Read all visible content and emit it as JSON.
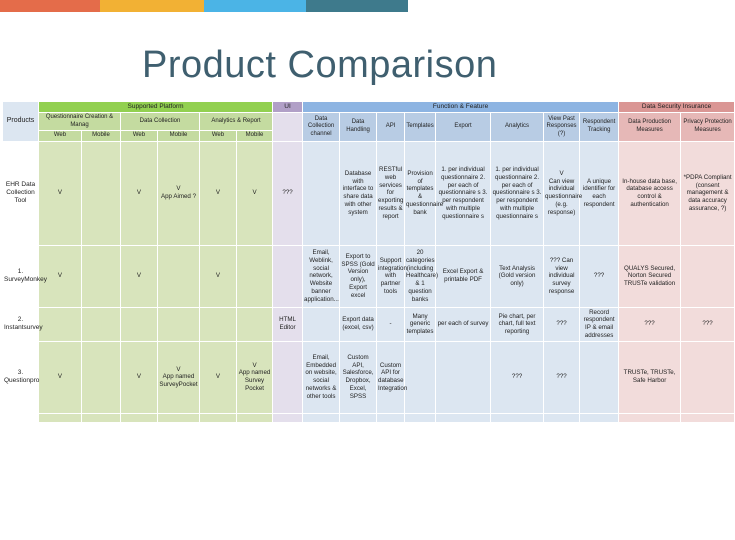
{
  "colors": {
    "bar1": "#e46c4a",
    "bar2": "#f2b134",
    "bar3": "#4bb4e6",
    "bar4": "#3e7a8c",
    "title": "#3f5f6f"
  },
  "title": "Product Comparison",
  "table": {
    "groups": {
      "products": "Products",
      "supported_platform": "Supported Platform",
      "ui": "UI",
      "function_feature": "Function & Feature",
      "data_security": "Data Security Insurance"
    },
    "platform_subgroups": {
      "questionnaire": "Questionnaire Creation & Manag",
      "data_collection": "Data Collection",
      "analytics": "Analytics & Report"
    },
    "platform_cols": [
      "Web",
      "Mobile",
      "Web",
      "Mobile",
      "Web",
      "Mobile"
    ],
    "feature_cols": [
      "Data Collection channel",
      "Data Handling",
      "API",
      "Templates",
      "Export",
      "Analytics",
      "View Past Responses (?)",
      "Respondent Tracking"
    ],
    "security_cols": [
      "Data Production Measures",
      "Privacy Protection Measures"
    ],
    "rows": [
      {
        "product": "EHR Data Collection Tool",
        "platform": [
          "V",
          "",
          "V",
          "V\nApp Aimed ?",
          "V",
          "V"
        ],
        "ui": "???",
        "features": [
          "",
          "Database with interface to share data with other system",
          "RESTful web services for exporting results & report",
          "Provision of templates & questionnaire bank",
          "1. per individual questionnaire 2. per each of questionnaire s 3. per respondent with multiple questionnaire s",
          "1. per individual questionnaire 2. per each of questionnaire s 3. per respondent with multiple questionnaire s",
          "V\nCan view individual questionnaire\n(e.g. response)",
          "A unique identifier for each respondent"
        ],
        "security": [
          "In-house data base, database access control & authentication",
          "*PDPA Compliant (consent management & data accuracy assurance, ?)"
        ]
      },
      {
        "product": "1. SurveyMonkey",
        "platform": [
          "V",
          "",
          "V",
          "",
          "V",
          ""
        ],
        "ui": "",
        "features": [
          "Email, Weblink, social network, Website banner application...",
          "Export to SPSS (Gold Version only), Export excel",
          "Support integration with partner tools",
          "20 categories (including Healthcare) & 1 question banks",
          "Excel Export & printable PDF",
          "Text Analysis (Gold version only)",
          "??? Can view individual survey response",
          "???"
        ],
        "security": [
          "QUALYS Secured, Norton Secured TRUSTe validation",
          ""
        ]
      },
      {
        "product": "2. Instantsurvey",
        "platform": [
          "",
          "",
          "",
          "",
          "",
          ""
        ],
        "ui": "HTML Editor",
        "features": [
          "",
          "Export data (excel, csv)",
          "-",
          "Many generic templates",
          "per each of survey",
          "Pie chart, per chart, full text reporting",
          "???",
          "Record respondent IP & email addresses"
        ],
        "security": [
          "???",
          "???"
        ]
      },
      {
        "product": "3. Questionpro",
        "platform": [
          "V",
          "",
          "V",
          "V\nApp named SurveyPocket",
          "V",
          "V\nApp named Survey Pocket"
        ],
        "ui": "",
        "features": [
          "Email, Embedded on website, social networks & other tools",
          "Custom API, Salesforce, Dropbox, Excel, SPSS",
          "Custom API for database Integration",
          "",
          "",
          "???",
          "???",
          ""
        ],
        "security": [
          "TRUSTe, TRUSTe, Safe Harbor",
          ""
        ]
      }
    ]
  }
}
